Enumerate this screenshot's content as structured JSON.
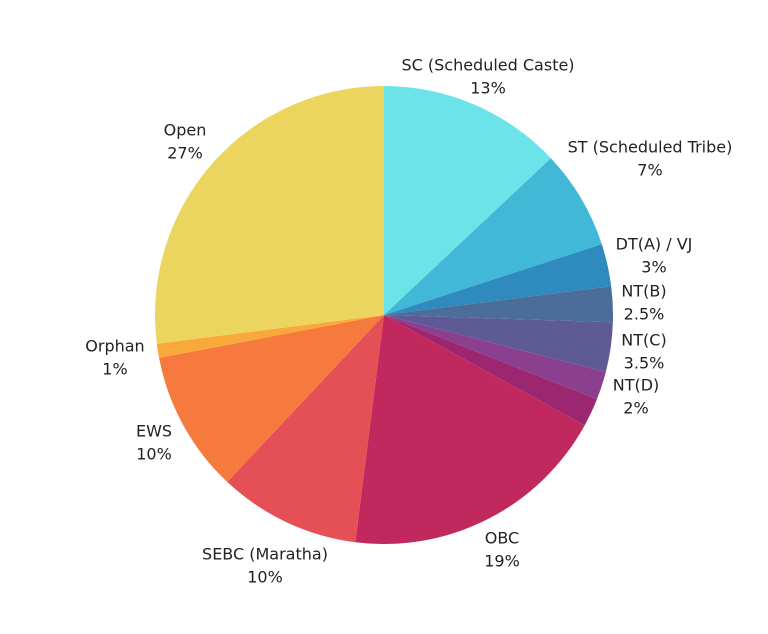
{
  "chart_data": {
    "type": "pie",
    "categories": [
      "SC (Scheduled Caste)",
      "ST (Scheduled Tribe)",
      "DT(A) / VJ",
      "NT(B)",
      "NT(C)",
      "NT(D)",
      null,
      "OBC",
      "SEBC (Maratha)",
      "EWS",
      "Orphan",
      "Open"
    ],
    "values": [
      13,
      7,
      3,
      2.5,
      3.5,
      2,
      2,
      19,
      10,
      10,
      1,
      27
    ],
    "value_labels": [
      "13%",
      "7%",
      "3%",
      "2.5%",
      "3.5%",
      "2%",
      null,
      "19%",
      "10%",
      "10%",
      "1%",
      "27%"
    ],
    "colors": [
      "#6ce3e8",
      "#41b8d5",
      "#2f8bbd",
      "#4b6d9a",
      "#5e5a96",
      "#8a3f8f",
      "#9c2670",
      "#c0285e",
      "#e45056",
      "#f6793e",
      "#f9a93a",
      "#ebd55e"
    ]
  }
}
